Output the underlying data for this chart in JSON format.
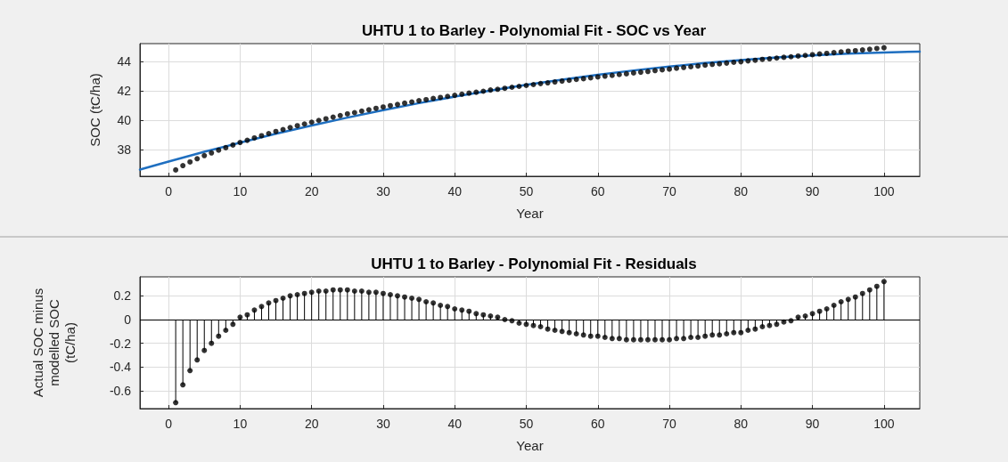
{
  "chart_data": [
    {
      "type": "scatter",
      "title": "UHTU 1 to Barley - Polynomial Fit - SOC vs Year",
      "xlabel": "Year",
      "ylabel": "SOC (tC/ha)",
      "x": [
        1,
        2,
        3,
        4,
        5,
        6,
        7,
        8,
        9,
        10,
        11,
        12,
        13,
        14,
        15,
        16,
        17,
        18,
        19,
        20,
        21,
        22,
        23,
        24,
        25,
        26,
        27,
        28,
        29,
        30,
        31,
        32,
        33,
        34,
        35,
        36,
        37,
        38,
        39,
        40,
        41,
        42,
        43,
        44,
        45,
        46,
        47,
        48,
        49,
        50,
        51,
        52,
        53,
        54,
        55,
        56,
        57,
        58,
        59,
        60,
        61,
        62,
        63,
        64,
        65,
        66,
        67,
        68,
        69,
        70,
        71,
        72,
        73,
        74,
        75,
        76,
        77,
        78,
        79,
        80,
        81,
        82,
        83,
        84,
        85,
        86,
        87,
        88,
        89,
        90,
        91,
        92,
        93,
        94,
        95,
        96,
        97,
        98,
        99,
        100
      ],
      "series": [
        {
          "type": "scatter",
          "color": "#000000",
          "marker": "circle",
          "values": [
            36.63,
            36.92,
            37.17,
            37.39,
            37.6,
            37.78,
            37.97,
            38.14,
            38.32,
            38.49,
            38.64,
            38.8,
            38.95,
            39.1,
            39.24,
            39.37,
            39.5,
            39.63,
            39.75,
            39.87,
            39.99,
            40.1,
            40.21,
            40.32,
            40.43,
            40.52,
            40.62,
            40.71,
            40.81,
            40.9,
            40.99,
            41.07,
            41.16,
            41.24,
            41.33,
            41.4,
            41.48,
            41.55,
            41.62,
            41.69,
            41.77,
            41.84,
            41.9,
            41.97,
            42.05,
            42.1,
            42.17,
            42.24,
            42.3,
            42.36,
            42.42,
            42.49,
            42.54,
            42.6,
            42.66,
            42.71,
            42.77,
            42.82,
            42.88,
            42.94,
            42.99,
            43.04,
            43.1,
            43.15,
            43.21,
            43.26,
            43.31,
            43.37,
            43.42,
            43.47,
            43.53,
            43.58,
            43.63,
            43.68,
            43.74,
            43.79,
            43.83,
            43.88,
            43.93,
            43.97,
            44.03,
            44.07,
            44.13,
            44.17,
            44.22,
            44.27,
            44.31,
            44.36,
            44.4,
            44.45,
            44.5,
            44.54,
            44.59,
            44.64,
            44.69,
            44.72,
            44.77,
            44.82,
            44.87,
            44.92
          ]
        },
        {
          "type": "line",
          "color": "#1f6fc0",
          "marker": "none",
          "line_style": "solid",
          "x": [
            -4,
            0,
            5,
            10,
            15,
            20,
            25,
            30,
            35,
            40,
            45,
            50,
            55,
            60,
            65,
            70,
            75,
            80,
            85,
            90,
            95,
            100,
            105
          ],
          "values": [
            36.65,
            37.2,
            37.86,
            38.48,
            39.08,
            39.64,
            40.18,
            40.68,
            41.16,
            41.6,
            42.02,
            42.4,
            42.76,
            43.08,
            43.38,
            43.64,
            43.88,
            44.08,
            44.26,
            44.4,
            44.52,
            44.6,
            44.66
          ]
        }
      ],
      "xlim": [
        -4,
        105
      ],
      "xticks": [
        0,
        10,
        20,
        30,
        40,
        50,
        60,
        70,
        80,
        90,
        100
      ],
      "ylim": [
        36.2,
        45.2
      ],
      "yticks": [
        38,
        40,
        42,
        44
      ],
      "grid": true
    },
    {
      "type": "lollipop",
      "title": "UHTU 1 to Barley - Polynomial Fit - Residuals",
      "xlabel": "Year",
      "ylabel": "Actual SOC minus modelled SOC (tC/ha)",
      "x": [
        1,
        2,
        3,
        4,
        5,
        6,
        7,
        8,
        9,
        10,
        11,
        12,
        13,
        14,
        15,
        16,
        17,
        18,
        19,
        20,
        21,
        22,
        23,
        24,
        25,
        26,
        27,
        28,
        29,
        30,
        31,
        32,
        33,
        34,
        35,
        36,
        37,
        38,
        39,
        40,
        41,
        42,
        43,
        44,
        45,
        46,
        47,
        48,
        49,
        50,
        51,
        52,
        53,
        54,
        55,
        56,
        57,
        58,
        59,
        60,
        61,
        62,
        63,
        64,
        65,
        66,
        67,
        68,
        69,
        70,
        71,
        72,
        73,
        74,
        75,
        76,
        77,
        78,
        79,
        80,
        81,
        82,
        83,
        84,
        85,
        86,
        87,
        88,
        89,
        90,
        91,
        92,
        93,
        94,
        95,
        96,
        97,
        98,
        99,
        100
      ],
      "color": "#000000",
      "marker": "circle",
      "values": [
        -0.7,
        -0.55,
        -0.43,
        -0.34,
        -0.26,
        -0.2,
        -0.14,
        -0.09,
        -0.04,
        0.02,
        0.04,
        0.08,
        0.11,
        0.14,
        0.16,
        0.18,
        0.2,
        0.21,
        0.22,
        0.23,
        0.24,
        0.24,
        0.25,
        0.25,
        0.25,
        0.24,
        0.24,
        0.23,
        0.23,
        0.22,
        0.21,
        0.2,
        0.19,
        0.18,
        0.17,
        0.15,
        0.14,
        0.12,
        0.11,
        0.09,
        0.08,
        0.07,
        0.05,
        0.04,
        0.03,
        0.02,
        0.0,
        -0.01,
        -0.03,
        -0.04,
        -0.05,
        -0.06,
        -0.08,
        -0.09,
        -0.1,
        -0.11,
        -0.12,
        -0.13,
        -0.14,
        -0.14,
        -0.15,
        -0.16,
        -0.16,
        -0.17,
        -0.17,
        -0.17,
        -0.17,
        -0.17,
        -0.17,
        -0.17,
        -0.16,
        -0.16,
        -0.15,
        -0.15,
        -0.14,
        -0.13,
        -0.13,
        -0.12,
        -0.11,
        -0.11,
        -0.09,
        -0.08,
        -0.06,
        -0.05,
        -0.04,
        -0.02,
        -0.01,
        0.02,
        0.03,
        0.05,
        0.07,
        0.09,
        0.12,
        0.15,
        0.17,
        0.19,
        0.22,
        0.25,
        0.28,
        0.32
      ],
      "ref_lines": [
        {
          "axis": "y",
          "value": 0,
          "color": "#000000"
        }
      ],
      "xlim": [
        -4,
        105
      ],
      "xticks": [
        0,
        10,
        20,
        30,
        40,
        50,
        60,
        70,
        80,
        90,
        100
      ],
      "ylim": [
        -0.75,
        0.36
      ],
      "yticks": [
        -0.6,
        -0.4,
        -0.2,
        0,
        0.2
      ],
      "grid": true
    }
  ]
}
